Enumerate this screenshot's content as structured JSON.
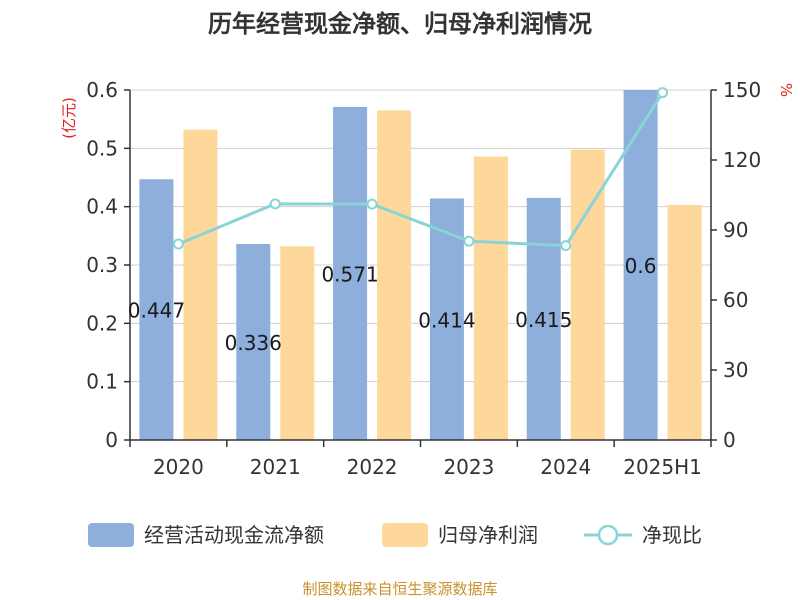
{
  "chart_data": {
    "type": "bar",
    "title": "历年经营现金净额、归母净利润情况",
    "categories": [
      "2020",
      "2021",
      "2022",
      "2023",
      "2024",
      "2025H1"
    ],
    "series": [
      {
        "name": "经营活动现金流净额",
        "kind": "bar",
        "axis": "left",
        "color": "#8eaedc",
        "values": [
          0.447,
          0.336,
          0.571,
          0.414,
          0.415,
          0.6
        ],
        "labels": [
          "0.447",
          "0.336",
          "0.571",
          "0.414",
          "0.415",
          "0.6"
        ]
      },
      {
        "name": "归母净利润",
        "kind": "bar",
        "axis": "left",
        "color": "#fed89b",
        "values": [
          0.532,
          0.332,
          0.565,
          0.486,
          0.498,
          0.403
        ]
      },
      {
        "name": "净现比",
        "kind": "line",
        "axis": "right",
        "color": "#88d4d6",
        "values": [
          84.0,
          101.2,
          101.1,
          85.2,
          83.3,
          148.9
        ]
      }
    ],
    "y_left": {
      "unit": "(亿元)",
      "ylim": [
        0,
        0.6
      ],
      "ticks": [
        "0",
        "0.1",
        "0.2",
        "0.3",
        "0.4",
        "0.5",
        "0.6"
      ]
    },
    "y_right": {
      "unit": "%",
      "ylim": [
        0,
        150
      ],
      "ticks": [
        "0",
        "30",
        "60",
        "90",
        "120",
        "150"
      ]
    },
    "grid": true,
    "legend_position": "bottom"
  },
  "source": "制图数据来自恒生聚源数据库"
}
